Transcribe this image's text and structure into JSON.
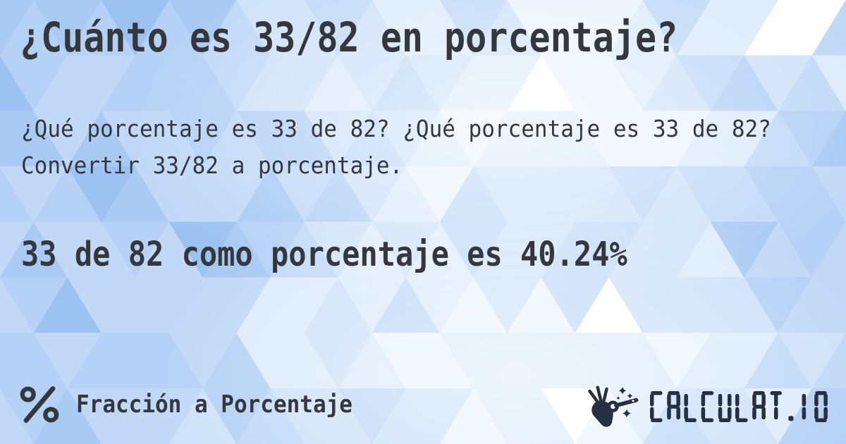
{
  "header": {
    "title": "¿Cuánto es 33/82 en porcentaje?"
  },
  "main": {
    "question": "¿Qué porcentaje es 33 de 82? ¿Qué porcentaje es 33 de 82? Convertir 33/82 a porcentaje.",
    "answer": "33 de 82 como porcentaje es 40.24%"
  },
  "footer": {
    "category_label": "Fracción a Porcentaje",
    "category_icon": "percent-icon",
    "brand_wordmark": "CALCULAT.IO",
    "brand_icon": "magic-wand-hand-icon"
  },
  "colors": {
    "text_dark": "#34383d",
    "brand_navy": "#273043",
    "background_palette": [
      "#9cc2f1",
      "#a9caf3",
      "#b5d1f5",
      "#c1d9f7",
      "#cfe2f9",
      "#ddebfb",
      "#ecf4fd",
      "#ffffff"
    ]
  }
}
